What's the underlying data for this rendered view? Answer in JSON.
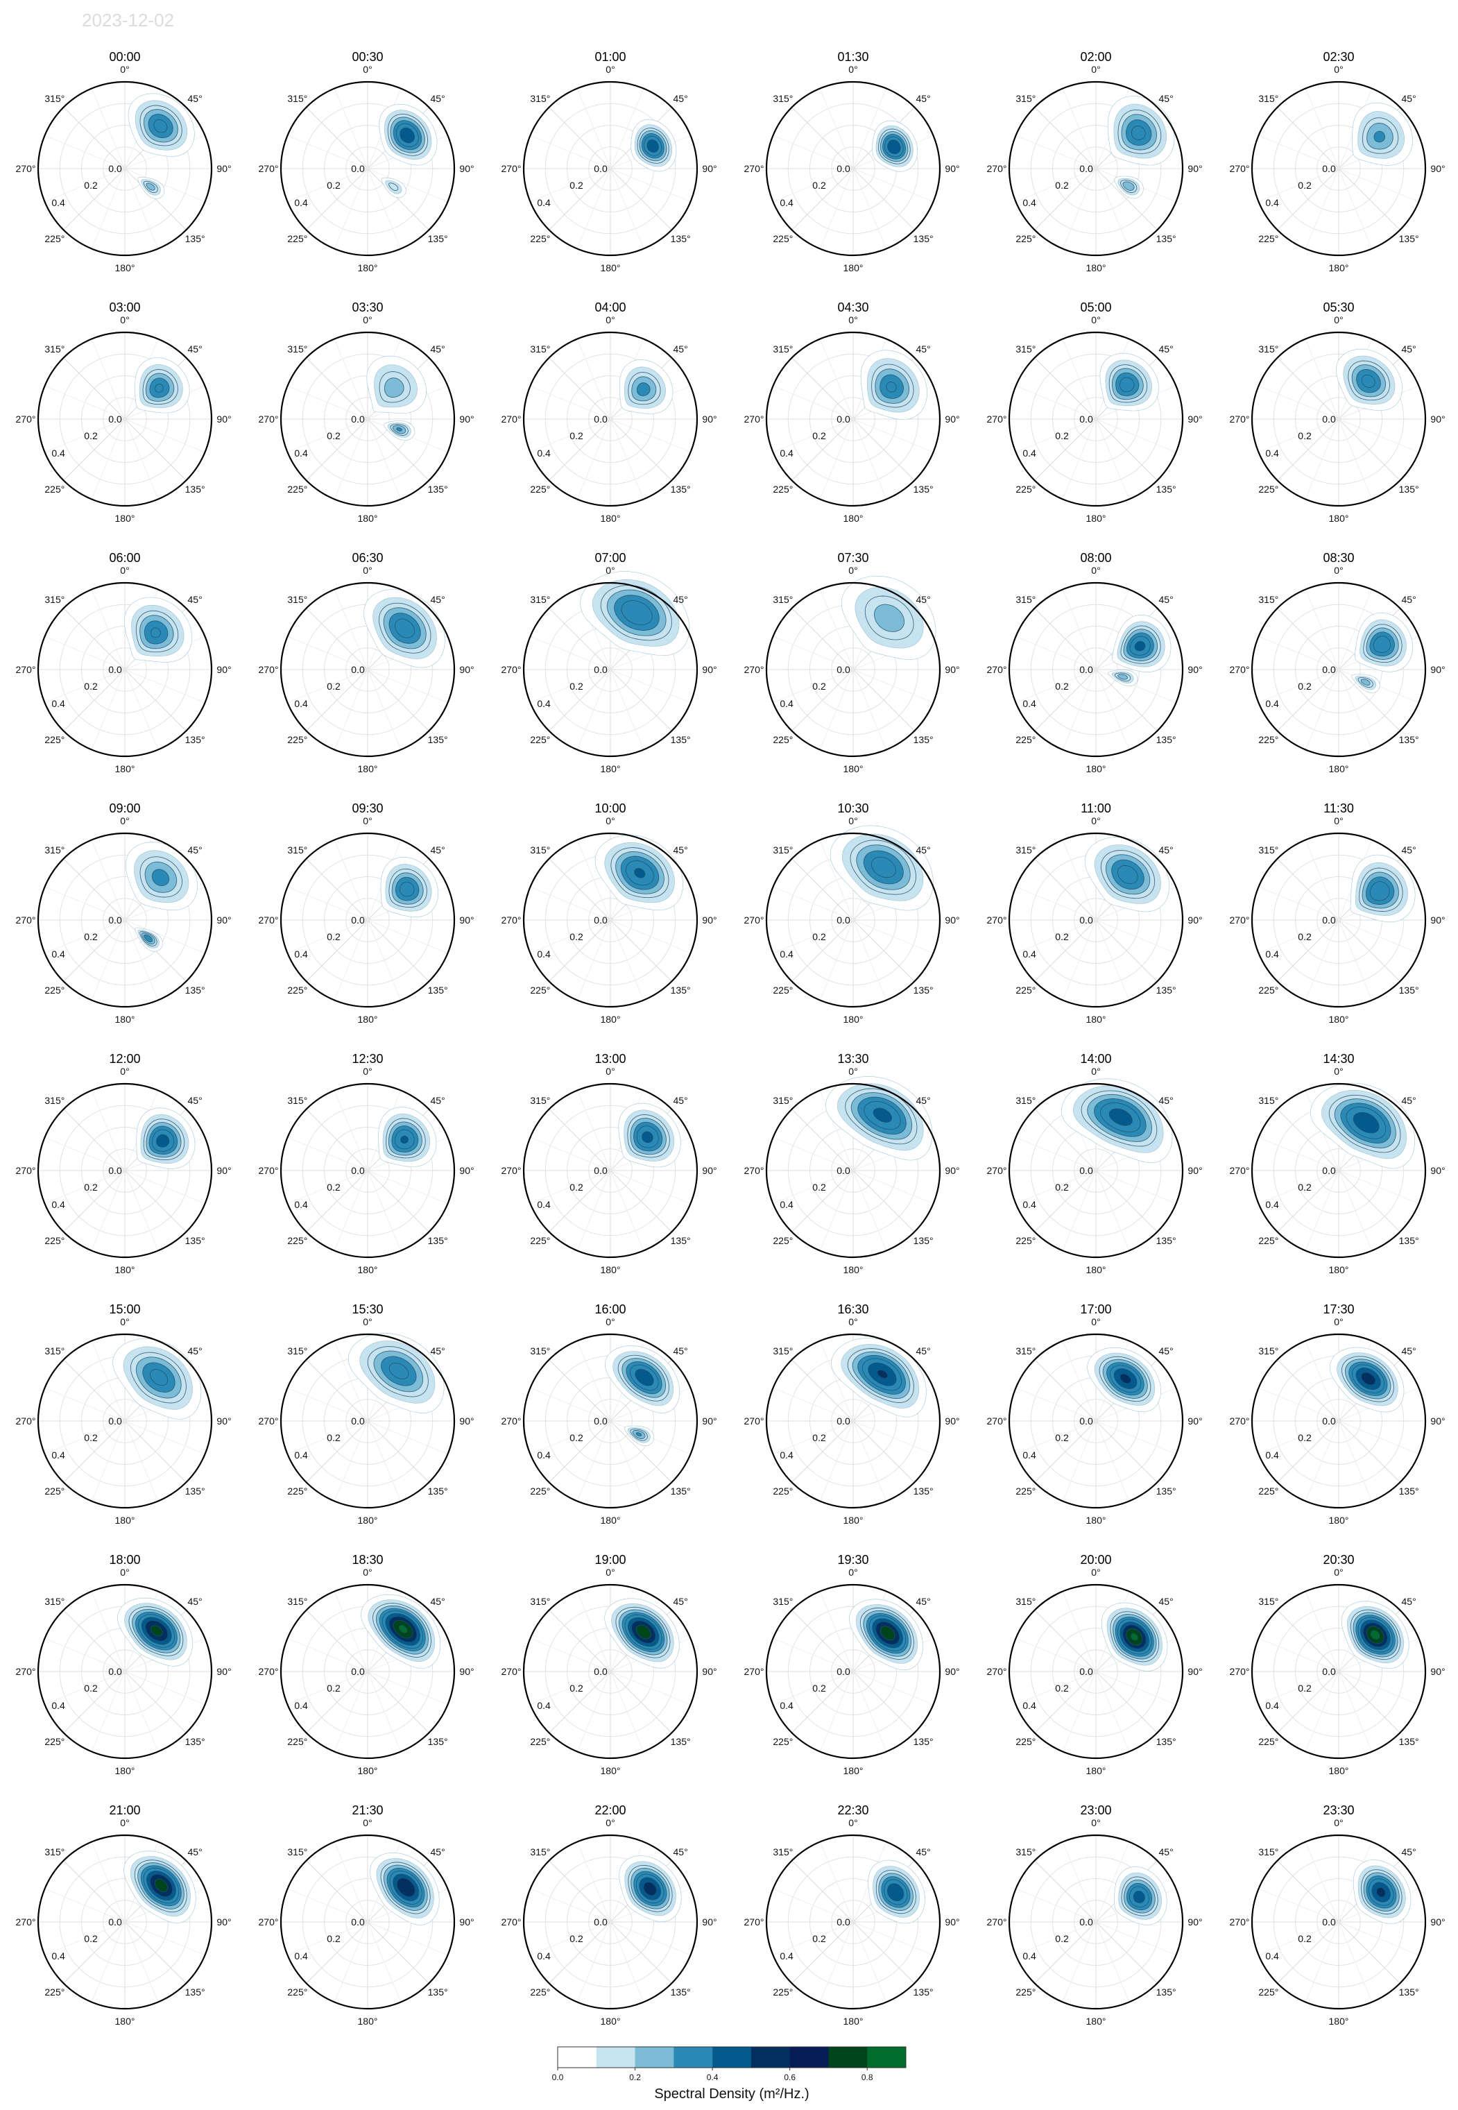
{
  "figure": {
    "date": "2023-12-02"
  },
  "chart_data": {
    "type": "heatmap",
    "subtype": "polar directional wave spectra (48 panels, 8 rows x 6 columns)",
    "panel_titles": [
      "00:00",
      "00:30",
      "01:00",
      "01:30",
      "02:00",
      "02:30",
      "03:00",
      "03:30",
      "04:00",
      "04:30",
      "05:00",
      "05:30",
      "06:00",
      "06:30",
      "07:00",
      "07:30",
      "08:00",
      "08:30",
      "09:00",
      "09:30",
      "10:00",
      "10:30",
      "11:00",
      "11:30",
      "12:00",
      "12:30",
      "13:00",
      "13:30",
      "14:00",
      "14:30",
      "15:00",
      "15:30",
      "16:00",
      "16:30",
      "17:00",
      "17:30",
      "18:00",
      "18:30",
      "19:00",
      "19:30",
      "20:00",
      "20:30",
      "21:00",
      "21:30",
      "22:00",
      "22:30",
      "23:00",
      "23:30"
    ],
    "direction_tick_labels": [
      "0°",
      "45°",
      "90°",
      "135°",
      "180°",
      "225°",
      "270°",
      "315°"
    ],
    "radial_tick_labels": [
      "0.0",
      "0.2",
      "0.4"
    ],
    "radial_range": [
      0,
      0.47
    ],
    "grid": true,
    "colorbar": {
      "label": "Spectral Density (m²/Hz.)",
      "range": [
        0,
        0.9
      ],
      "ticks": [
        "0.0",
        "0.2",
        "0.4",
        "0.6",
        "0.8"
      ],
      "colors": [
        "#ffffff",
        "#c6e3ef",
        "#7cbcd6",
        "#2a8ab5",
        "#045a8d",
        "#03305f",
        "#081d58",
        "#00441b",
        "#006d2c"
      ]
    },
    "peaks": [
      {
        "dir": 40,
        "r": 0.3,
        "val": 0.4,
        "sd": 16,
        "sr": 0.07,
        "sec": {
          "dir": 125,
          "r": 0.17,
          "val": 0.25
        }
      },
      {
        "dir": 50,
        "r": 0.28,
        "val": 0.55,
        "sd": 15,
        "sr": 0.06,
        "sec": {
          "dir": 125,
          "r": 0.17,
          "val": 0.18
        }
      },
      {
        "dir": 62,
        "r": 0.26,
        "val": 0.55,
        "sd": 13,
        "sr": 0.05
      },
      {
        "dir": 62,
        "r": 0.25,
        "val": 0.58,
        "sd": 13,
        "sr": 0.05
      },
      {
        "dir": 50,
        "r": 0.3,
        "val": 0.4,
        "sd": 16,
        "sr": 0.08,
        "sec": {
          "dir": 118,
          "r": 0.2,
          "val": 0.28
        }
      },
      {
        "dir": 52,
        "r": 0.28,
        "val": 0.3,
        "sd": 16,
        "sr": 0.08
      },
      {
        "dir": 48,
        "r": 0.25,
        "val": 0.38,
        "sd": 15,
        "sr": 0.07
      },
      {
        "dir": 40,
        "r": 0.22,
        "val": 0.25,
        "sd": 20,
        "sr": 0.08,
        "sec": {
          "dir": 108,
          "r": 0.18,
          "val": 0.3
        }
      },
      {
        "dir": 48,
        "r": 0.24,
        "val": 0.32,
        "sd": 16,
        "sr": 0.07
      },
      {
        "dir": 50,
        "r": 0.27,
        "val": 0.38,
        "sd": 18,
        "sr": 0.08
      },
      {
        "dir": 42,
        "r": 0.25,
        "val": 0.42,
        "sd": 16,
        "sr": 0.07
      },
      {
        "dir": 38,
        "r": 0.26,
        "val": 0.4,
        "sd": 18,
        "sr": 0.07
      },
      {
        "dir": 40,
        "r": 0.26,
        "val": 0.38,
        "sd": 18,
        "sr": 0.08
      },
      {
        "dir": 42,
        "r": 0.3,
        "val": 0.42,
        "sd": 20,
        "sr": 0.08
      },
      {
        "dir": 25,
        "r": 0.34,
        "val": 0.45,
        "sd": 22,
        "sr": 0.09
      },
      {
        "dir": 35,
        "r": 0.34,
        "val": 0.25,
        "sd": 22,
        "sr": 0.1
      },
      {
        "dir": 62,
        "r": 0.27,
        "val": 0.5,
        "sd": 13,
        "sr": 0.07,
        "sec": {
          "dir": 105,
          "r": 0.15,
          "val": 0.25
        }
      },
      {
        "dir": 60,
        "r": 0.27,
        "val": 0.45,
        "sd": 14,
        "sr": 0.07,
        "sec": {
          "dir": 115,
          "r": 0.16,
          "val": 0.25
        }
      },
      {
        "dir": 40,
        "r": 0.3,
        "val": 0.32,
        "sd": 18,
        "sr": 0.08,
        "sec": {
          "dir": 128,
          "r": 0.16,
          "val": 0.35
        }
      },
      {
        "dir": 52,
        "r": 0.27,
        "val": 0.42,
        "sd": 15,
        "sr": 0.07
      },
      {
        "dir": 32,
        "r": 0.3,
        "val": 0.48,
        "sd": 20,
        "sr": 0.08
      },
      {
        "dir": 30,
        "r": 0.33,
        "val": 0.42,
        "sd": 22,
        "sr": 0.09
      },
      {
        "dir": 35,
        "r": 0.3,
        "val": 0.42,
        "sd": 20,
        "sr": 0.08
      },
      {
        "dir": 55,
        "r": 0.27,
        "val": 0.45,
        "sd": 16,
        "sr": 0.08
      },
      {
        "dir": 52,
        "r": 0.26,
        "val": 0.52,
        "sd": 15,
        "sr": 0.07
      },
      {
        "dir": 50,
        "r": 0.26,
        "val": 0.48,
        "sd": 15,
        "sr": 0.07
      },
      {
        "dir": 48,
        "r": 0.27,
        "val": 0.5,
        "sd": 16,
        "sr": 0.07
      },
      {
        "dir": 28,
        "r": 0.34,
        "val": 0.5,
        "sd": 22,
        "sr": 0.08
      },
      {
        "dir": 25,
        "r": 0.32,
        "val": 0.52,
        "sd": 24,
        "sr": 0.08
      },
      {
        "dir": 30,
        "r": 0.3,
        "val": 0.55,
        "sd": 24,
        "sr": 0.08
      },
      {
        "dir": 38,
        "r": 0.3,
        "val": 0.4,
        "sd": 22,
        "sr": 0.08
      },
      {
        "dir": 32,
        "r": 0.32,
        "val": 0.4,
        "sd": 22,
        "sr": 0.08
      },
      {
        "dir": 38,
        "r": 0.3,
        "val": 0.55,
        "sd": 18,
        "sr": 0.06,
        "sec": {
          "dir": 115,
          "r": 0.17,
          "val": 0.3
        }
      },
      {
        "dir": 32,
        "r": 0.3,
        "val": 0.6,
        "sd": 22,
        "sr": 0.07
      },
      {
        "dir": 35,
        "r": 0.28,
        "val": 0.62,
        "sd": 18,
        "sr": 0.06
      },
      {
        "dir": 35,
        "r": 0.28,
        "val": 0.65,
        "sd": 18,
        "sr": 0.06
      },
      {
        "dir": 38,
        "r": 0.28,
        "val": 0.78,
        "sd": 18,
        "sr": 0.06
      },
      {
        "dir": 40,
        "r": 0.3,
        "val": 0.88,
        "sd": 18,
        "sr": 0.06
      },
      {
        "dir": 40,
        "r": 0.28,
        "val": 0.82,
        "sd": 18,
        "sr": 0.06
      },
      {
        "dir": 42,
        "r": 0.28,
        "val": 0.82,
        "sd": 18,
        "sr": 0.06
      },
      {
        "dir": 48,
        "r": 0.28,
        "val": 0.88,
        "sd": 16,
        "sr": 0.06
      },
      {
        "dir": 45,
        "r": 0.28,
        "val": 0.9,
        "sd": 16,
        "sr": 0.06
      },
      {
        "dir": 45,
        "r": 0.28,
        "val": 0.8,
        "sd": 18,
        "sr": 0.06
      },
      {
        "dir": 48,
        "r": 0.28,
        "val": 0.72,
        "sd": 18,
        "sr": 0.06
      },
      {
        "dir": 50,
        "r": 0.28,
        "val": 0.66,
        "sd": 16,
        "sr": 0.06
      },
      {
        "dir": 55,
        "r": 0.28,
        "val": 0.58,
        "sd": 15,
        "sr": 0.06
      },
      {
        "dir": 60,
        "r": 0.27,
        "val": 0.52,
        "sd": 14,
        "sr": 0.06
      },
      {
        "dir": 55,
        "r": 0.28,
        "val": 0.62,
        "sd": 15,
        "sr": 0.06
      }
    ]
  }
}
